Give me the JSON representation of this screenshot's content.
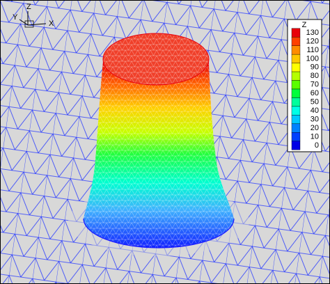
{
  "axes_triad": {
    "z": "Z",
    "y": "Y",
    "x": "X"
  },
  "legend": {
    "title": "Z",
    "levels": [
      130,
      120,
      110,
      100,
      90,
      80,
      70,
      60,
      50,
      40,
      30,
      20,
      10,
      0
    ],
    "colors": [
      "#e8000b",
      "#ff4000",
      "#ff8c00",
      "#ffc800",
      "#ffff00",
      "#b4ff00",
      "#5aff00",
      "#00ff3c",
      "#00ff9c",
      "#00ffe6",
      "#00c8ff",
      "#0082ff",
      "#0040ff",
      "#0000e6"
    ]
  }
}
